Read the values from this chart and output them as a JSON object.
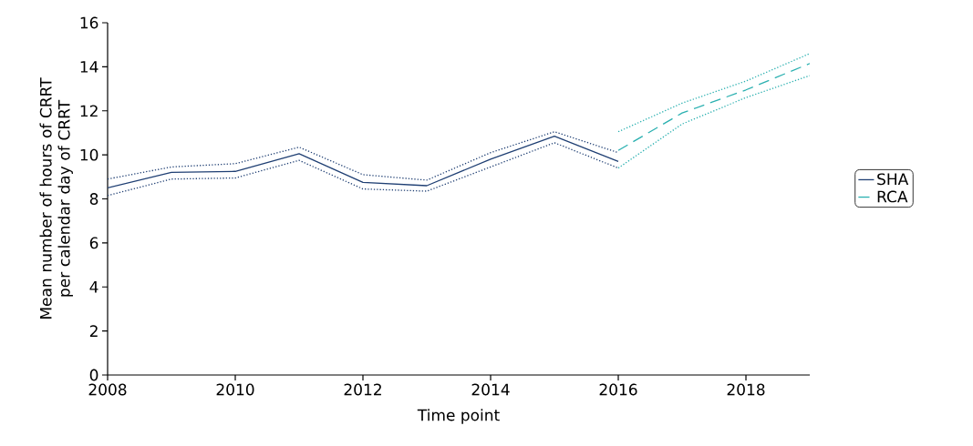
{
  "chart_data": {
    "type": "line",
    "xlabel": "Time point",
    "ylabel": "Mean number of hours of CRRT per calendar day of CRRT",
    "xlim": [
      2008,
      2019
    ],
    "xticks": [
      2008,
      2010,
      2012,
      2014,
      2016,
      2018
    ],
    "ylim": [
      0,
      16
    ],
    "yticks": [
      0,
      2,
      4,
      6,
      8,
      10,
      12,
      14,
      16
    ],
    "grid": false,
    "legend": "right",
    "marker": "none",
    "series": [
      {
        "name": "SHA",
        "color": "#1f3f73",
        "line_style": "solid",
        "x": [
          2008,
          2009,
          2010,
          2011,
          2012,
          2013,
          2014,
          2015,
          2016
        ],
        "values": [
          8.5,
          9.2,
          9.25,
          10.05,
          8.75,
          8.6,
          9.8,
          10.85,
          9.7
        ]
      },
      {
        "color": "#1f3f73",
        "line_style": "dotted",
        "x": [
          2008,
          2009,
          2010,
          2011,
          2012,
          2013,
          2014,
          2015,
          2016
        ],
        "values": [
          8.15,
          8.9,
          8.95,
          9.75,
          8.45,
          8.35,
          9.45,
          10.55,
          9.4
        ]
      },
      {
        "color": "#1f3f73",
        "line_style": "dotted",
        "x": [
          2008,
          2009,
          2010,
          2011,
          2012,
          2013,
          2014,
          2015,
          2016
        ],
        "values": [
          8.9,
          9.45,
          9.6,
          10.35,
          9.1,
          8.85,
          10.1,
          11.05,
          10.1
        ]
      },
      {
        "name": "RCA",
        "color": "#2ab0b0",
        "line_style": "dashed",
        "x": [
          2016,
          2017,
          2018,
          2019
        ],
        "values": [
          10.2,
          11.9,
          12.95,
          14.15
        ]
      },
      {
        "color": "#2ab0b0",
        "line_style": "dotted",
        "x": [
          2016,
          2017,
          2018,
          2019
        ],
        "values": [
          9.4,
          11.4,
          12.6,
          13.6
        ]
      },
      {
        "color": "#2ab0b0",
        "line_style": "dotted",
        "x": [
          2016,
          2017,
          2018,
          2019
        ],
        "values": [
          11.05,
          12.35,
          13.35,
          14.6
        ]
      }
    ]
  }
}
